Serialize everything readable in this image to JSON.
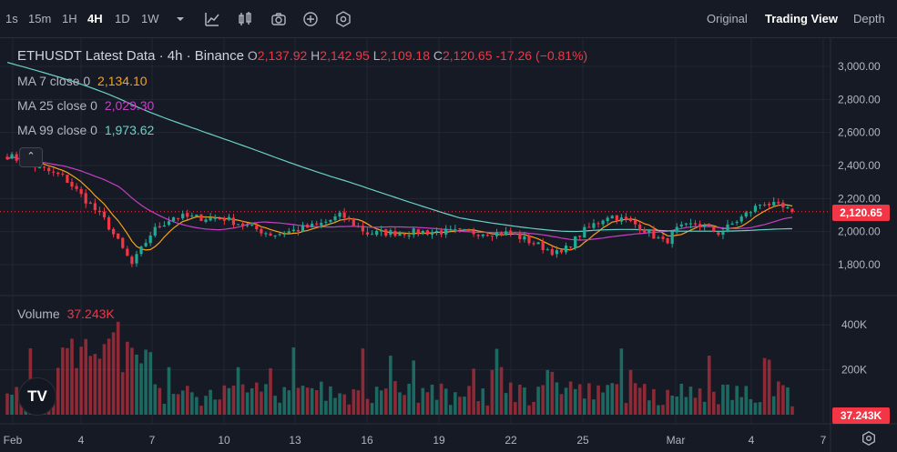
{
  "toolbar": {
    "timeframes": [
      "1s",
      "15m",
      "1H",
      "4H",
      "1D",
      "1W"
    ],
    "active_timeframe": "4H",
    "icons": [
      "chevron-down-icon",
      "indicators-icon",
      "candles-icon",
      "camera-icon",
      "plus-circle-icon",
      "gear-hex-icon"
    ],
    "views": [
      "Original",
      "Trading View",
      "Depth"
    ],
    "active_view": "Trading View"
  },
  "legend": {
    "symbol": "ETHUSDT Latest Data · 4h · Binance",
    "open_label": "O",
    "open": "2,137.92",
    "high_label": "H",
    "high": "2,142.95",
    "low_label": "L",
    "low": "2,109.18",
    "close_label": "C",
    "close": "2,120.65",
    "change": "-17.26 (−0.81%)",
    "ma7_label": "MA 7 close 0",
    "ma7_value": "2,134.10",
    "ma25_label": "MA 25 close 0",
    "ma25_value": "2,029.30",
    "ma99_label": "MA 99 close 0",
    "ma99_value": "1,973.62",
    "volume_label": "Volume",
    "volume_value": "37.243K"
  },
  "price_axis": {
    "ticks": [
      "3,000.00",
      "2,800.00",
      "2,600.00",
      "2,400.00",
      "2,200.00",
      "2,000.00",
      "1,800.00"
    ],
    "current_price": "2,120.65"
  },
  "volume_axis": {
    "ticks": [
      "400K",
      "200K"
    ],
    "current_volume": "37.243K"
  },
  "time_axis": {
    "labels": [
      "Feb",
      "4",
      "7",
      "10",
      "13",
      "16",
      "19",
      "22",
      "25",
      "Mar",
      "4",
      "7"
    ]
  },
  "colors": {
    "up": "#22ab94",
    "down": "#f23645",
    "ma7": "#f7a21b",
    "ma25": "#c341c3",
    "ma99": "#6ad0c6",
    "background": "#161a25",
    "grid": "#232733"
  },
  "chart_data": {
    "type": "candlestick",
    "title": "ETHUSDT Latest Data · 4h · Binance",
    "ylim": [
      1700,
      3100
    ],
    "series": [
      {
        "name": "MA 7 close 0",
        "current": 2134.1
      },
      {
        "name": "MA 25 close 0",
        "current": 2029.3
      },
      {
        "name": "MA 99 close 0",
        "current": 1973.62
      },
      {
        "name": "Volume",
        "current": "37.243K"
      }
    ],
    "anchors": [
      {
        "x": "Feb 1",
        "y": 2460
      },
      {
        "x": "Feb 3",
        "y": 2330
      },
      {
        "x": "Feb 4",
        "y": 2220
      },
      {
        "x": "Feb 5",
        "y": 2070
      },
      {
        "x": "Feb 6",
        "y": 1800
      },
      {
        "x": "Feb 7",
        "y": 2000
      },
      {
        "x": "Feb 8",
        "y": 2090
      },
      {
        "x": "Feb 10",
        "y": 2080
      },
      {
        "x": "Feb 12",
        "y": 1980
      },
      {
        "x": "Feb 14",
        "y": 2040
      },
      {
        "x": "Feb 15",
        "y": 2100
      },
      {
        "x": "Feb 16",
        "y": 1990
      },
      {
        "x": "Feb 19",
        "y": 2000
      },
      {
        "x": "Feb 22",
        "y": 1990
      },
      {
        "x": "Feb 24",
        "y": 1860
      },
      {
        "x": "Feb 25",
        "y": 2000
      },
      {
        "x": "Feb 26",
        "y": 2100
      },
      {
        "x": "Feb 27",
        "y": 2040
      },
      {
        "x": "Feb 28",
        "y": 1930
      },
      {
        "x": "Mar 1",
        "y": 2010
      },
      {
        "x": "Mar 2",
        "y": 2050
      },
      {
        "x": "Mar 3",
        "y": 1990
      },
      {
        "x": "Mar 4",
        "y": 2180
      },
      {
        "x": "Mar 5",
        "y": 2120.65
      }
    ],
    "volume_ylim": [
      0,
      500
    ],
    "volume_unit": "K",
    "ma99_start": 3030,
    "seed": 7
  }
}
